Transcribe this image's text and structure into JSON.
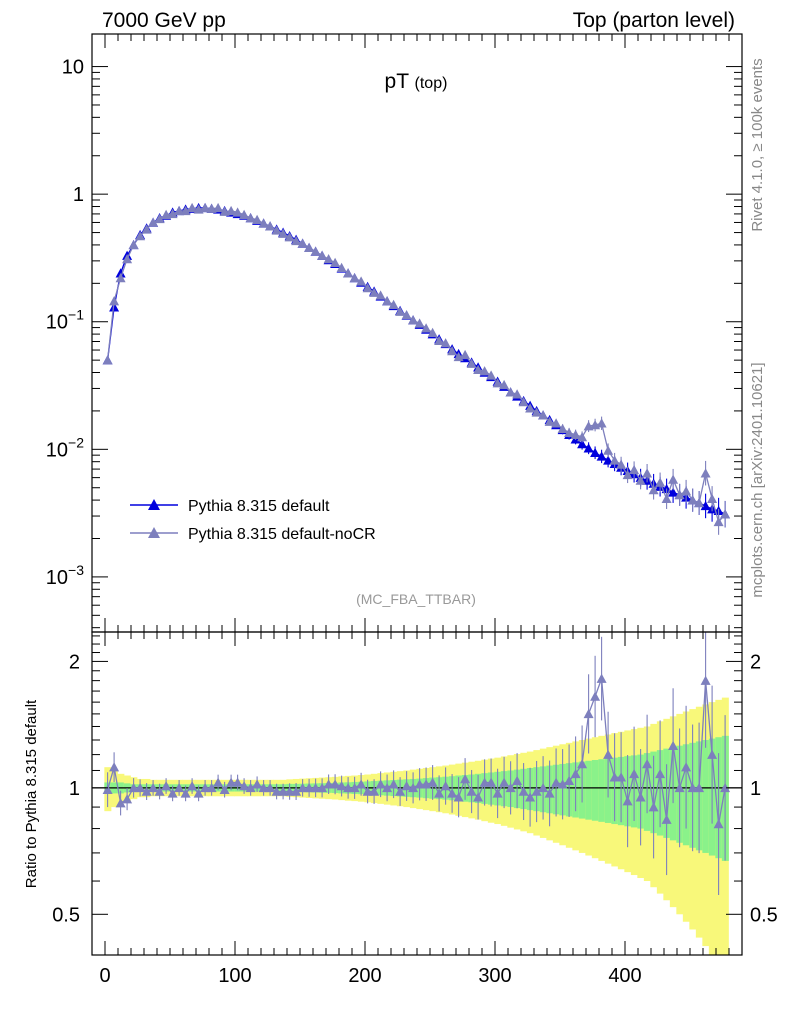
{
  "header": {
    "left": "7000 GeV pp",
    "right": "Top (parton level)"
  },
  "side_labels": {
    "rivet": "Rivet 4.1.0, ≥ 100k events",
    "mcplots": "mcplots.cern.ch [arXiv:2401.10621]"
  },
  "watermark": "(MC_FBA_TTBAR)",
  "chart_data": {
    "type": "line",
    "title": "pT",
    "title_sub": "(top)",
    "xlabel": "",
    "xlim": [
      -10,
      490
    ],
    "x_ticks": [
      0,
      100,
      200,
      300,
      400
    ],
    "main_panel": {
      "yscale": "log",
      "ylim": [
        0.00037,
        18
      ],
      "y_tick_labels": [
        {
          "value": 0.001,
          "base": "10",
          "exp": "−3"
        },
        {
          "value": 0.01,
          "base": "10",
          "exp": "−2"
        },
        {
          "value": 0.1,
          "base": "10",
          "exp": "−1"
        },
        {
          "value": 1,
          "base": "1",
          "exp": ""
        },
        {
          "value": 10,
          "base": "10",
          "exp": ""
        }
      ]
    },
    "ratio_panel": {
      "ylabel": "Ratio to Pythia 8.315 default",
      "yscale": "log",
      "ylim": [
        0.4,
        2.35
      ],
      "y_ticks": [
        0.5,
        1,
        2
      ],
      "y_tick_labels": [
        "0.5",
        "1",
        "2"
      ]
    },
    "legend": {
      "position": "lower-left",
      "entries": [
        "Pythia 8.315 default",
        "Pythia 8.315 default-noCR"
      ]
    },
    "colors": {
      "default": "#0000dd",
      "nocr": "#7d7fbd",
      "band_inner": "#8af28a",
      "band_outer": "#f8f87a"
    },
    "x": [
      2,
      7,
      12,
      17,
      22,
      27,
      32,
      37,
      42,
      47,
      52,
      57,
      62,
      67,
      72,
      77,
      82,
      87,
      92,
      97,
      102,
      107,
      112,
      117,
      122,
      127,
      132,
      137,
      142,
      147,
      152,
      157,
      162,
      167,
      172,
      177,
      182,
      187,
      192,
      197,
      202,
      207,
      212,
      217,
      222,
      227,
      232,
      237,
      242,
      247,
      252,
      257,
      262,
      267,
      272,
      277,
      282,
      287,
      292,
      297,
      302,
      307,
      312,
      317,
      322,
      327,
      332,
      337,
      342,
      347,
      352,
      357,
      362,
      367,
      372,
      377,
      382,
      387,
      392,
      397,
      402,
      407,
      412,
      417,
      422,
      427,
      432,
      437,
      442,
      447,
      452,
      457,
      462,
      467,
      472,
      477
    ],
    "series": [
      {
        "name": "Pythia 8.315 default",
        "values": [
          0.05,
          0.13,
          0.24,
          0.33,
          0.4,
          0.48,
          0.54,
          0.6,
          0.65,
          0.68,
          0.72,
          0.74,
          0.76,
          0.77,
          0.78,
          0.78,
          0.77,
          0.76,
          0.74,
          0.72,
          0.7,
          0.68,
          0.65,
          0.62,
          0.59,
          0.56,
          0.53,
          0.5,
          0.47,
          0.44,
          0.41,
          0.38,
          0.355,
          0.33,
          0.305,
          0.285,
          0.262,
          0.24,
          0.22,
          0.203,
          0.188,
          0.173,
          0.158,
          0.145,
          0.133,
          0.122,
          0.112,
          0.103,
          0.095,
          0.087,
          0.08,
          0.073,
          0.067,
          0.061,
          0.056,
          0.052,
          0.048,
          0.044,
          0.04,
          0.037,
          0.034,
          0.031,
          0.028,
          0.026,
          0.024,
          0.022,
          0.02,
          0.0185,
          0.017,
          0.0155,
          0.0142,
          0.013,
          0.012,
          0.011,
          0.0102,
          0.0094,
          0.0088,
          0.0082,
          0.0077,
          0.0072,
          0.0068,
          0.0064,
          0.006,
          0.0057,
          0.0054,
          0.0051,
          0.0049,
          0.0046,
          0.0044,
          0.0042,
          0.004,
          0.0038,
          0.0036,
          0.0034,
          0.0033,
          0.0031
        ]
      },
      {
        "name": "Pythia 8.315 default-noCR",
        "values": [
          0.05,
          0.145,
          0.22,
          0.31,
          0.4,
          0.47,
          0.53,
          0.6,
          0.64,
          0.69,
          0.7,
          0.74,
          0.74,
          0.78,
          0.76,
          0.78,
          0.77,
          0.78,
          0.73,
          0.74,
          0.72,
          0.69,
          0.65,
          0.63,
          0.59,
          0.56,
          0.52,
          0.49,
          0.46,
          0.43,
          0.41,
          0.38,
          0.355,
          0.33,
          0.31,
          0.29,
          0.265,
          0.24,
          0.22,
          0.207,
          0.184,
          0.169,
          0.161,
          0.145,
          0.136,
          0.12,
          0.113,
          0.103,
          0.097,
          0.089,
          0.082,
          0.071,
          0.068,
          0.059,
          0.053,
          0.055,
          0.047,
          0.042,
          0.041,
          0.038,
          0.033,
          0.032,
          0.028,
          0.027,
          0.0235,
          0.021,
          0.0195,
          0.0185,
          0.0165,
          0.016,
          0.0145,
          0.0135,
          0.013,
          0.0125,
          0.0152,
          0.0155,
          0.016,
          0.0098,
          0.0082,
          0.0076,
          0.0063,
          0.0069,
          0.0057,
          0.0065,
          0.0048,
          0.0055,
          0.0041,
          0.0058,
          0.0044,
          0.0047,
          0.004,
          0.0038,
          0.0065,
          0.0041,
          0.0027,
          0.0031
        ]
      }
    ],
    "ratio_values": [
      0.99,
      1.12,
      0.92,
      0.94,
      1.0,
      1.0,
      0.98,
      1.0,
      0.98,
      1.01,
      0.97,
      1.0,
      0.97,
      1.01,
      0.97,
      1.0,
      1.0,
      1.03,
      0.99,
      1.03,
      1.03,
      1.01,
      1.0,
      1.02,
      1.0,
      1.0,
      0.98,
      0.98,
      0.98,
      0.98,
      1.0,
      1.0,
      1.0,
      1.0,
      1.02,
      1.02,
      1.01,
      1.0,
      1.0,
      1.02,
      0.98,
      0.98,
      1.02,
      1.0,
      1.02,
      0.98,
      1.01,
      1.0,
      1.02,
      1.02,
      1.03,
      0.97,
      1.01,
      0.97,
      0.95,
      1.05,
      0.98,
      0.95,
      1.03,
      1.03,
      0.97,
      1.03,
      1.0,
      1.04,
      0.98,
      0.95,
      0.98,
      1.0,
      0.97,
      1.03,
      1.02,
      1.04,
      1.08,
      1.14,
      1.5,
      1.65,
      1.82,
      1.2,
      1.06,
      1.06,
      0.93,
      1.08,
      0.95,
      1.14,
      0.9,
      1.08,
      0.84,
      1.26,
      1.0,
      1.12,
      1.0,
      1.0,
      1.8,
      1.2,
      0.82,
      1.0
    ],
    "band_inner_halfwidth": [
      0.03,
      0.03,
      0.03,
      0.025,
      0.02,
      0.02,
      0.02,
      0.02,
      0.02,
      0.02,
      0.02,
      0.02,
      0.02,
      0.02,
      0.02,
      0.02,
      0.02,
      0.02,
      0.02,
      0.02,
      0.02,
      0.02,
      0.02,
      0.02,
      0.02,
      0.02,
      0.02,
      0.02,
      0.022,
      0.022,
      0.023,
      0.024,
      0.025,
      0.026,
      0.027,
      0.028,
      0.03,
      0.031,
      0.033,
      0.034,
      0.036,
      0.038,
      0.04,
      0.042,
      0.044,
      0.046,
      0.048,
      0.05,
      0.052,
      0.055,
      0.058,
      0.06,
      0.063,
      0.066,
      0.07,
      0.073,
      0.076,
      0.08,
      0.084,
      0.088,
      0.092,
      0.096,
      0.1,
      0.105,
      0.11,
      0.115,
      0.12,
      0.125,
      0.13,
      0.135,
      0.14,
      0.145,
      0.15,
      0.155,
      0.16,
      0.165,
      0.17,
      0.175,
      0.18,
      0.185,
      0.19,
      0.195,
      0.2,
      0.21,
      0.22,
      0.23,
      0.24,
      0.25,
      0.26,
      0.27,
      0.28,
      0.29,
      0.3,
      0.31,
      0.32,
      0.33
    ],
    "band_outer_halfwidth": [
      0.12,
      0.1,
      0.08,
      0.07,
      0.06,
      0.05,
      0.05,
      0.045,
      0.045,
      0.045,
      0.045,
      0.045,
      0.045,
      0.045,
      0.045,
      0.045,
      0.045,
      0.045,
      0.045,
      0.045,
      0.045,
      0.045,
      0.045,
      0.045,
      0.045,
      0.045,
      0.045,
      0.045,
      0.048,
      0.05,
      0.052,
      0.054,
      0.056,
      0.058,
      0.06,
      0.062,
      0.065,
      0.068,
      0.07,
      0.073,
      0.076,
      0.08,
      0.084,
      0.088,
      0.092,
      0.096,
      0.1,
      0.105,
      0.11,
      0.115,
      0.12,
      0.125,
      0.13,
      0.136,
      0.142,
      0.148,
      0.154,
      0.16,
      0.167,
      0.174,
      0.18,
      0.188,
      0.196,
      0.204,
      0.212,
      0.22,
      0.23,
      0.24,
      0.25,
      0.26,
      0.27,
      0.28,
      0.29,
      0.3,
      0.31,
      0.32,
      0.33,
      0.34,
      0.35,
      0.36,
      0.37,
      0.38,
      0.39,
      0.4,
      0.42,
      0.44,
      0.46,
      0.48,
      0.5,
      0.52,
      0.54,
      0.56,
      0.58,
      0.6,
      0.62,
      0.64
    ]
  }
}
